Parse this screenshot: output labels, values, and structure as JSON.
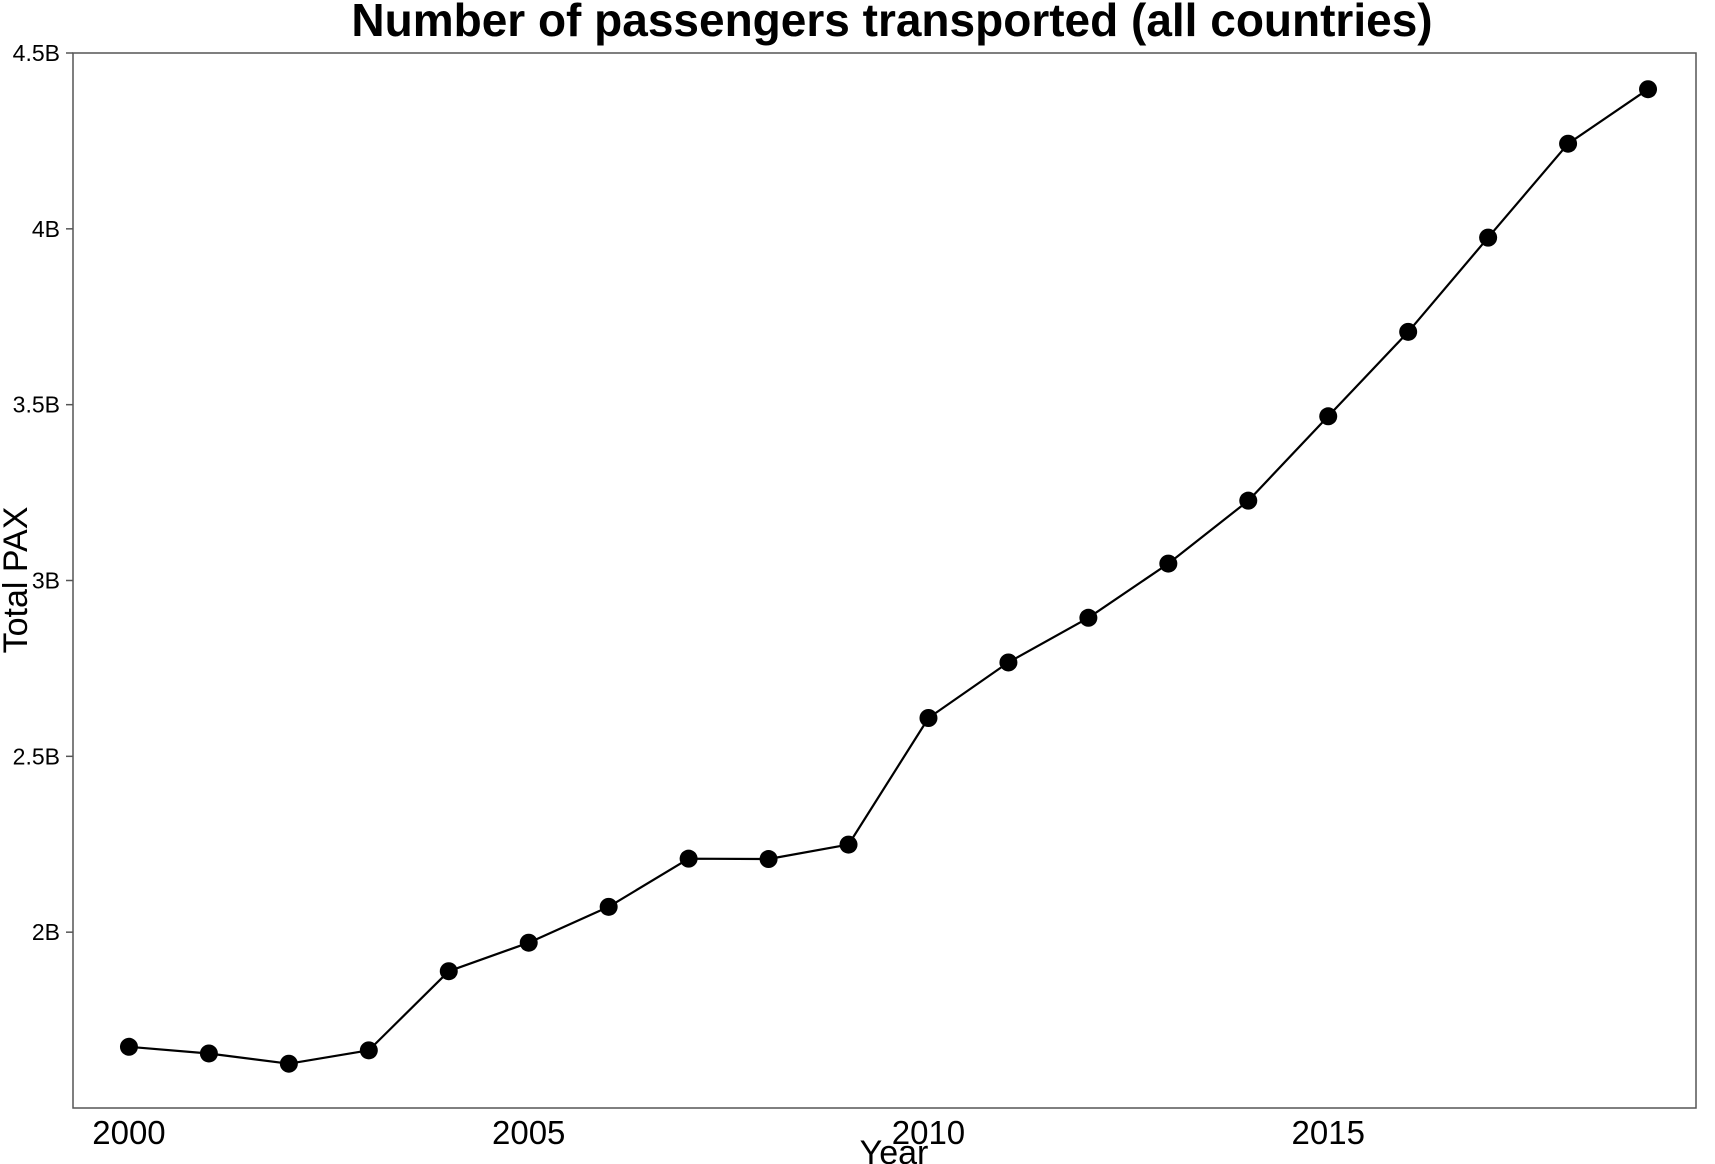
{
  "chart_data": {
    "type": "line",
    "title": "Number of passengers transported (all countries)",
    "xlabel": "Year",
    "ylabel": "Total PAX",
    "x_ticks": [
      2000,
      2005,
      2010,
      2015
    ],
    "x_tick_labels": [
      "2000",
      "2005",
      "2010",
      "2015"
    ],
    "y_ticks": [
      2000000000,
      2500000000,
      3000000000,
      3500000000,
      4000000000,
      4500000000
    ],
    "y_tick_labels": [
      "2B",
      "2.5B",
      "3B",
      "3.5B",
      "4B",
      "4.5B"
    ],
    "xlim": [
      1999.3,
      2019.6
    ],
    "ylim": [
      1500000000,
      4500000000
    ],
    "grid": false,
    "line_color": "#000000",
    "marker_color": "#000000",
    "series": [
      {
        "x": [
          2000,
          2001,
          2002,
          2003,
          2004,
          2005,
          2006,
          2007,
          2008,
          2009,
          2010,
          2011,
          2012,
          2013,
          2014,
          2015,
          2016,
          2017,
          2018,
          2019
        ],
        "values": [
          1674000000,
          1655000000,
          1626000000,
          1664000000,
          1889000000,
          1970000000,
          2072000000,
          2209000000,
          2208000000,
          2249000000,
          2609000000,
          2767000000,
          2894000000,
          3048000000,
          3227000000,
          3467000000,
          3707000000,
          3975000000,
          4242000000,
          4397000000
        ]
      }
    ]
  }
}
